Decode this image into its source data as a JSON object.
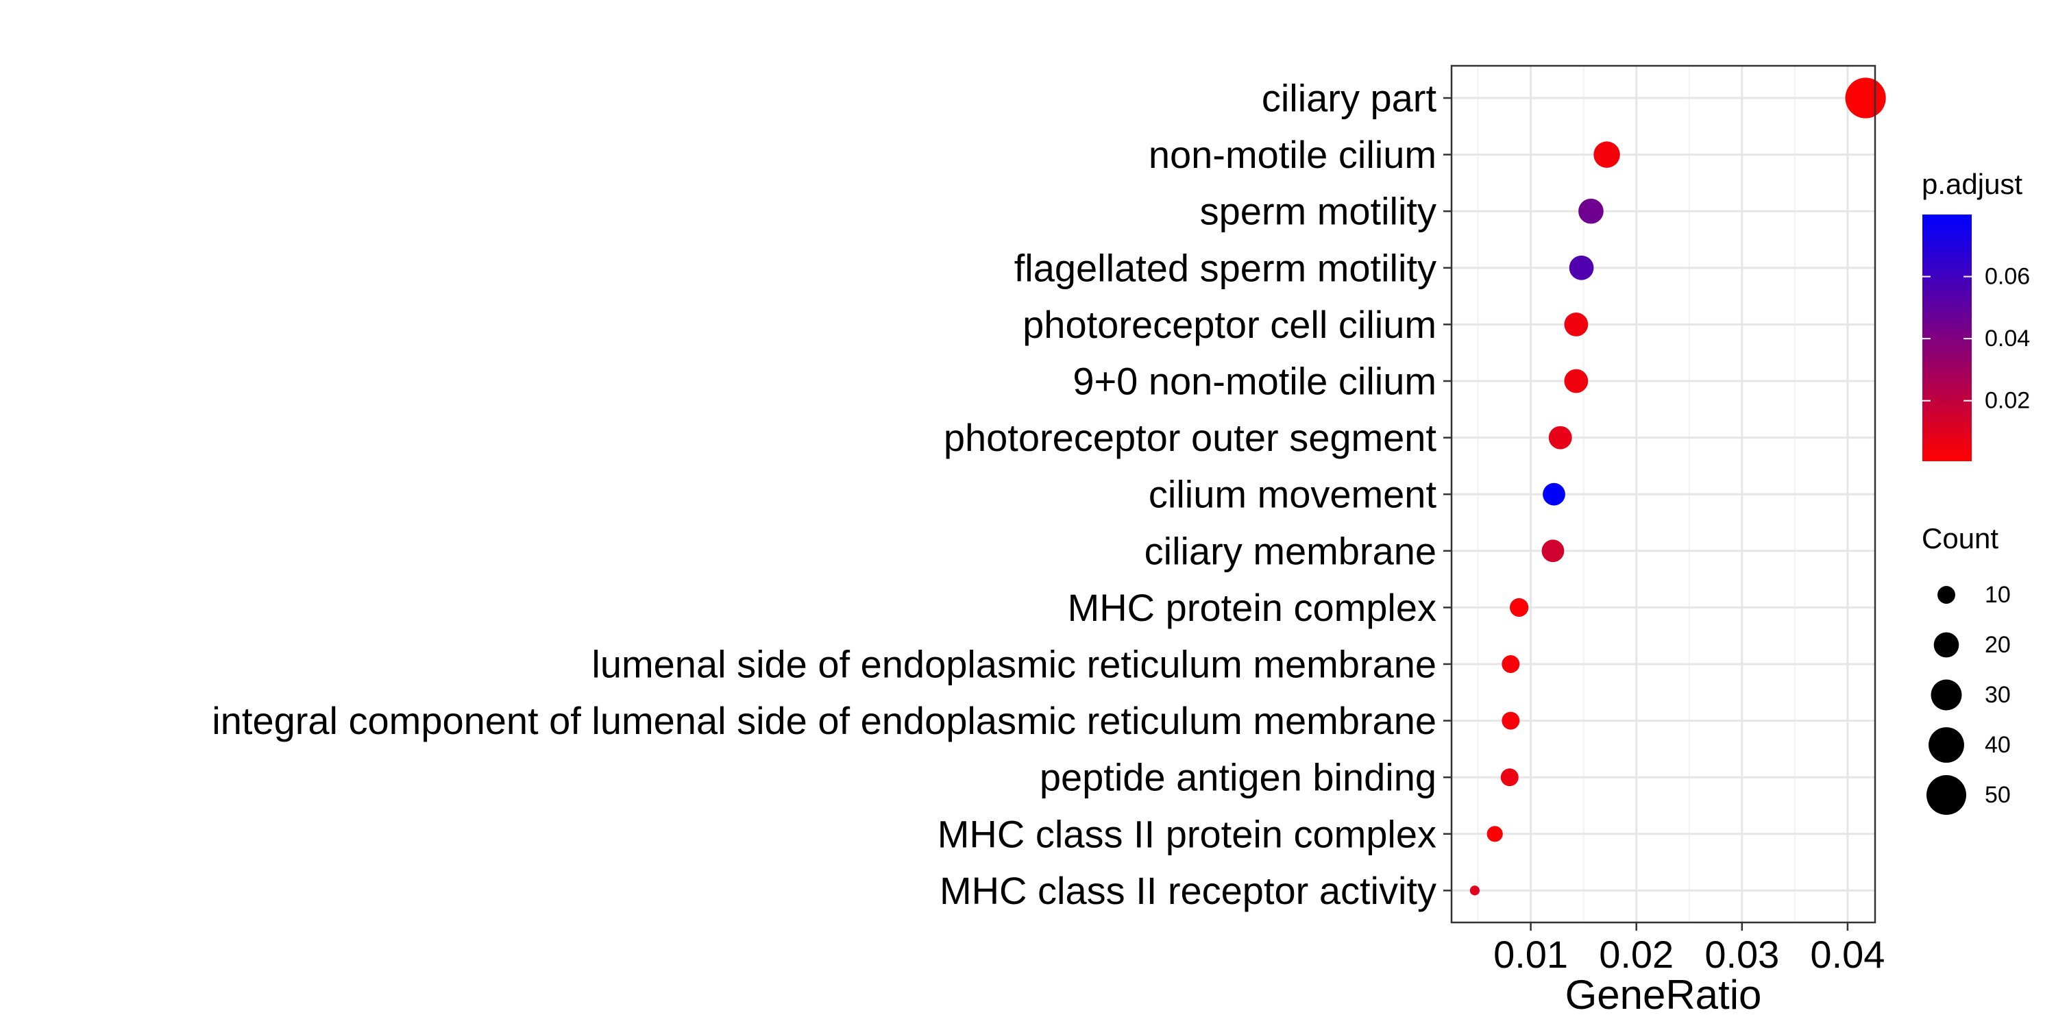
{
  "chart_data": {
    "type": "scatter",
    "xlabel": "GeneRatio",
    "xlim": [
      0.0025,
      0.0426
    ],
    "x_ticks": [
      0.01,
      0.02,
      0.03,
      0.04
    ],
    "x_tick_labels": [
      "0.01",
      "0.02",
      "0.03",
      "0.04"
    ],
    "grid": true,
    "color_by": "p.adjust",
    "size_by": "Count",
    "color_scale": {
      "title": "p.adjust",
      "low_color": "#ff0000",
      "high_color": "#0000ff",
      "range": [
        0.0005,
        0.08
      ],
      "ticks": [
        0.02,
        0.04,
        0.06
      ],
      "tick_labels": [
        "0.02",
        "0.04",
        "0.06"
      ]
    },
    "size_scale": {
      "title": "Count",
      "values": [
        10,
        20,
        30,
        40,
        50
      ],
      "labels": [
        "10",
        "20",
        "30",
        "40",
        "50"
      ]
    },
    "legend_position": "right",
    "points": [
      {
        "term": "ciliary part",
        "gene_ratio": 0.0417,
        "count": 52,
        "p_adjust": 0.001
      },
      {
        "term": "non-motile cilium",
        "gene_ratio": 0.0172,
        "count": 22,
        "p_adjust": 0.004
      },
      {
        "term": "sperm motility",
        "gene_ratio": 0.0157,
        "count": 20,
        "p_adjust": 0.045
      },
      {
        "term": "flagellated sperm motility",
        "gene_ratio": 0.0148,
        "count": 19,
        "p_adjust": 0.055
      },
      {
        "term": "photoreceptor cell cilium",
        "gene_ratio": 0.0143,
        "count": 18,
        "p_adjust": 0.005
      },
      {
        "term": "9+0 non-motile cilium",
        "gene_ratio": 0.0143,
        "count": 18,
        "p_adjust": 0.005
      },
      {
        "term": "photoreceptor outer segment",
        "gene_ratio": 0.0128,
        "count": 17,
        "p_adjust": 0.008
      },
      {
        "term": "cilium movement",
        "gene_ratio": 0.0122,
        "count": 16,
        "p_adjust": 0.08
      },
      {
        "term": "ciliary membrane",
        "gene_ratio": 0.0121,
        "count": 16,
        "p_adjust": 0.015
      },
      {
        "term": "MHC protein complex",
        "gene_ratio": 0.0089,
        "count": 11,
        "p_adjust": 0.002
      },
      {
        "term": "lumenal side of endoplasmic reticulum membrane",
        "gene_ratio": 0.0081,
        "count": 10,
        "p_adjust": 0.003
      },
      {
        "term": "integral component of lumenal side of endoplasmic reticulum membrane",
        "gene_ratio": 0.0081,
        "count": 10,
        "p_adjust": 0.003
      },
      {
        "term": "peptide antigen binding",
        "gene_ratio": 0.008,
        "count": 10,
        "p_adjust": 0.006
      },
      {
        "term": "MHC class II protein complex",
        "gene_ratio": 0.0066,
        "count": 8,
        "p_adjust": 0.002
      },
      {
        "term": "MHC class II receptor activity",
        "gene_ratio": 0.0047,
        "count": 3,
        "p_adjust": 0.01
      }
    ]
  }
}
